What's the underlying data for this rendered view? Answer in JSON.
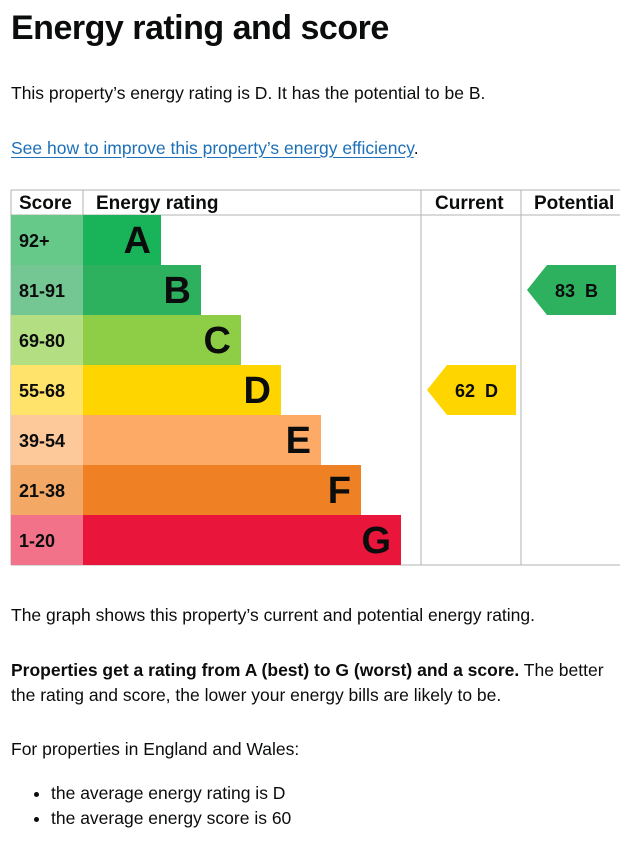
{
  "page": {
    "title": "Energy rating and score",
    "summary": "This property’s energy rating is D. It has the potential to be B.",
    "improve_link": "See how to improve this property’s energy efficiency",
    "improve_link_suffix": ".",
    "graph_caption": "The graph shows this property’s current and potential energy rating.",
    "rating_info_bold": "Properties get a rating from A (best) to G (worst) and a score.",
    "rating_info_rest": " The better the rating and score, the lower your energy bills are likely to be.",
    "region_intro": "For properties in England and Wales:",
    "averages": [
      "the average energy rating is D",
      "the average energy score is 60"
    ]
  },
  "chart_data": {
    "type": "bar",
    "headers": {
      "score": "Score",
      "rating": "Energy rating",
      "current": "Current",
      "potential": "Potential"
    },
    "bands": [
      {
        "letter": "A",
        "score_range": "92+",
        "bar_color": "#19b459",
        "score_color": "#66c989"
      },
      {
        "letter": "B",
        "score_range": "81-91",
        "bar_color": "#2db15f",
        "score_color": "#74c793"
      },
      {
        "letter": "C",
        "score_range": "69-80",
        "bar_color": "#8dce46",
        "score_color": "#b3df82"
      },
      {
        "letter": "D",
        "score_range": "55-68",
        "bar_color": "#ffd500",
        "score_color": "#ffe36a"
      },
      {
        "letter": "E",
        "score_range": "39-54",
        "bar_color": "#fcaa65",
        "score_color": "#fdc89a"
      },
      {
        "letter": "F",
        "score_range": "21-38",
        "bar_color": "#ef8023",
        "score_color": "#f4a865"
      },
      {
        "letter": "G",
        "score_range": "1-20",
        "bar_color": "#e9153b",
        "score_color": "#f27389"
      }
    ],
    "current": {
      "score": 62,
      "letter": "D",
      "label": "62  D",
      "color": "#ffd500"
    },
    "potential": {
      "score": 83,
      "letter": "B",
      "label": "83  B",
      "color": "#2db15f"
    }
  }
}
